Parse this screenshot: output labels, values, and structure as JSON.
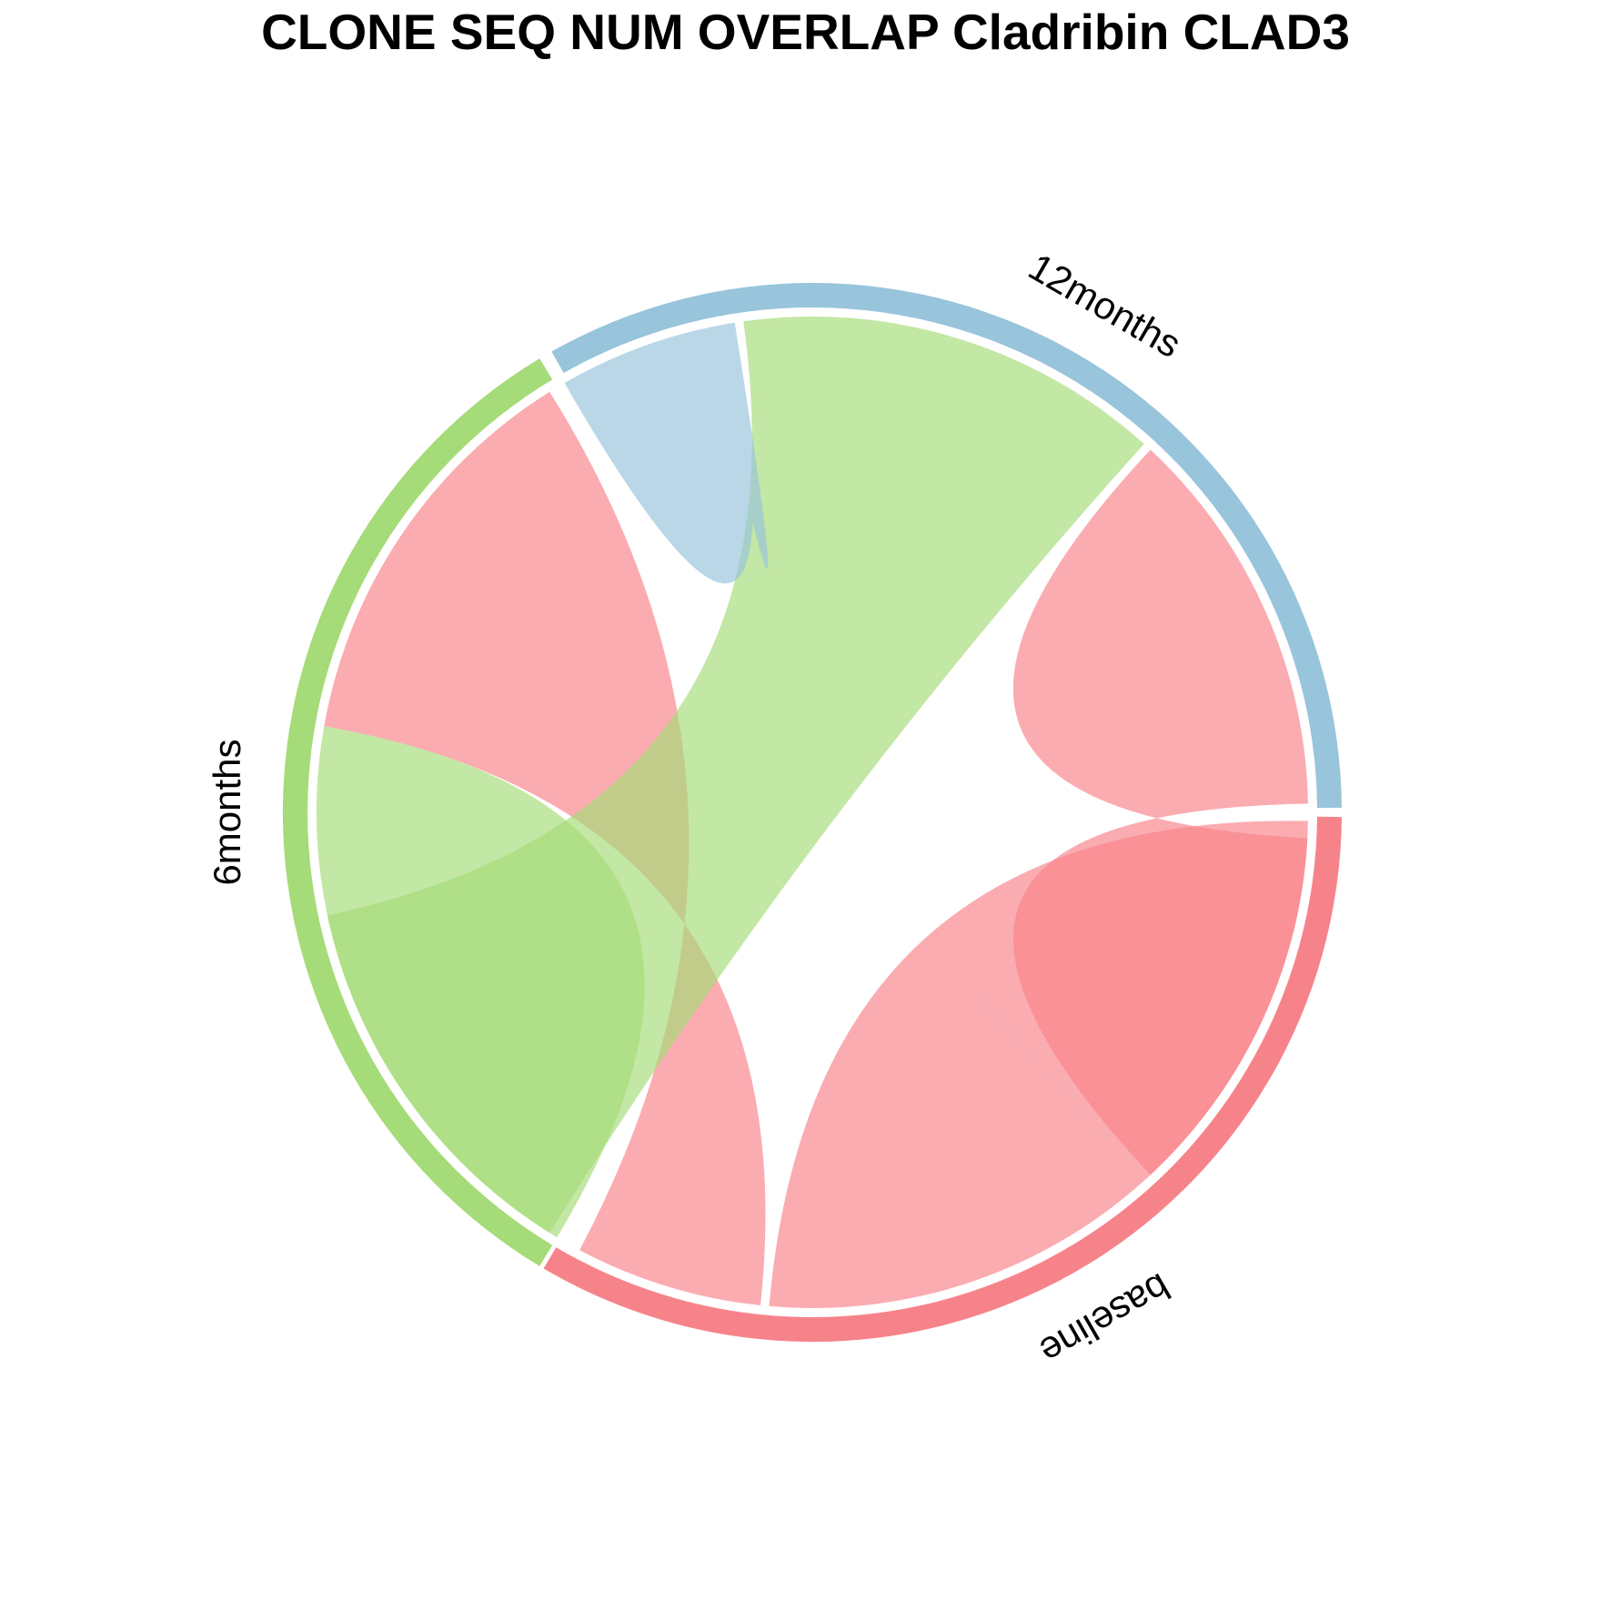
{
  "title": "CLONE SEQ NUM OVERLAP Cladribin CLAD3",
  "chart_data": {
    "type": "chord",
    "title": "CLONE SEQ NUM OVERLAP Cladribin CLAD3",
    "sectors": [
      {
        "name": "baseline",
        "color": "#F7838A"
      },
      {
        "name": "6months",
        "color": "#A5DB78"
      },
      {
        "name": "12months",
        "color": "#98C4DC"
      }
    ],
    "links": [
      {
        "from": "baseline",
        "to": "baseline",
        "color": "#F7838A"
      },
      {
        "from": "baseline",
        "to": "6months",
        "color": "#F7838A"
      },
      {
        "from": "baseline",
        "to": "12months",
        "color": "#F7838A"
      },
      {
        "from": "6months",
        "to": "6months",
        "color": "#A5DB78"
      },
      {
        "from": "6months",
        "to": "12months",
        "color": "#A5DB78"
      },
      {
        "from": "12months",
        "to": "12months",
        "color": "#98C4DC"
      }
    ]
  }
}
